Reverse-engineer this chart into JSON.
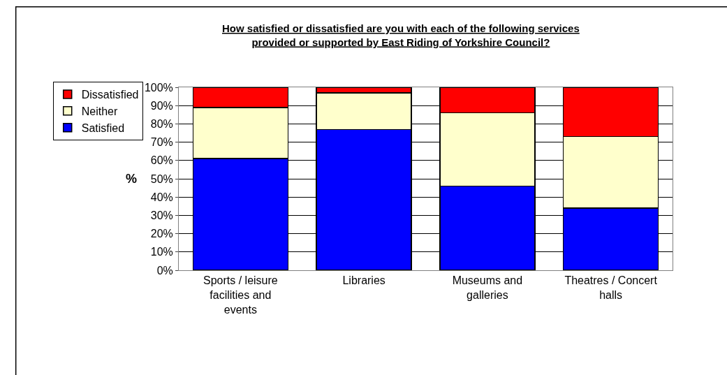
{
  "chart_data": {
    "type": "bar",
    "stacked": true,
    "title": "How satisfied or dissatisfied are you with each of the following services provided or supported by East Riding of Yorkshire Council?",
    "ylabel": "%",
    "categories": [
      "Sports / leisure facilities and events",
      "Libraries",
      "Museums and galleries",
      "Theatres / Concert halls"
    ],
    "series": [
      {
        "name": "Satisfied",
        "color": "#0000ff",
        "values": [
          61,
          77,
          46,
          34
        ]
      },
      {
        "name": "Neither",
        "color": "#ffffcc",
        "values": [
          28,
          20,
          40,
          39
        ]
      },
      {
        "name": "Dissatisfied",
        "color": "#ff0000",
        "values": [
          11,
          3,
          14,
          27
        ]
      }
    ],
    "ylim": [
      0,
      100
    ],
    "yticks": [
      {
        "value": 0,
        "label": "0%"
      },
      {
        "value": 10,
        "label": "10%"
      },
      {
        "value": 20,
        "label": "20%"
      },
      {
        "value": 30,
        "label": "30%"
      },
      {
        "value": 40,
        "label": "40%"
      },
      {
        "value": 50,
        "label": "50%"
      },
      {
        "value": 60,
        "label": "60%"
      },
      {
        "value": 70,
        "label": "70%"
      },
      {
        "value": 80,
        "label": "80%"
      },
      {
        "value": 90,
        "label": "90%"
      },
      {
        "value": 100,
        "label": "100%"
      }
    ],
    "grid": "y",
    "legend": "left"
  }
}
